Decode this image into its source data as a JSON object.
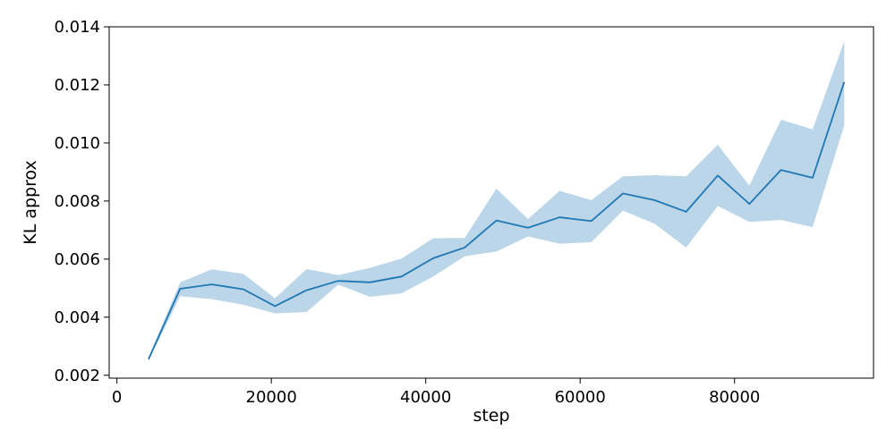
{
  "chart_data": {
    "type": "line",
    "title": "",
    "xlabel": "step",
    "ylabel": "KL approx",
    "xlim": [
      -1000,
      98000
    ],
    "ylim": [
      0.0019,
      0.014
    ],
    "xticks": [
      0,
      20000,
      40000,
      60000,
      80000
    ],
    "xtick_labels": [
      "0",
      "20000",
      "40000",
      "60000",
      "80000"
    ],
    "yticks": [
      0.002,
      0.004,
      0.006,
      0.008,
      0.01,
      0.012,
      0.014
    ],
    "ytick_labels": [
      "0.002",
      "0.004",
      "0.006",
      "0.008",
      "0.010",
      "0.012",
      "0.014"
    ],
    "grid": false,
    "series": [
      {
        "color": "#1f77b4",
        "band_color": "#1f77b4",
        "band_opacity": 0.3,
        "x": [
          4096,
          8192,
          12288,
          16384,
          20480,
          24576,
          28672,
          32768,
          36864,
          40960,
          45056,
          49152,
          53248,
          57344,
          61440,
          65536,
          69632,
          73728,
          77824,
          81920,
          86016,
          90112,
          94208
        ],
        "y": [
          0.00255,
          0.00498,
          0.00513,
          0.00496,
          0.00438,
          0.00493,
          0.00525,
          0.0052,
          0.0054,
          0.00603,
          0.0064,
          0.00733,
          0.00708,
          0.00744,
          0.00731,
          0.00826,
          0.00803,
          0.00763,
          0.00888,
          0.0079,
          0.00907,
          0.0088,
          0.0121
        ],
        "lower": [
          0.0025,
          0.00472,
          0.00462,
          0.00443,
          0.00413,
          0.00418,
          0.00512,
          0.0047,
          0.00482,
          0.0054,
          0.0061,
          0.00626,
          0.00678,
          0.00653,
          0.00658,
          0.00767,
          0.00722,
          0.0064,
          0.00783,
          0.00728,
          0.00735,
          0.0071,
          0.0106
        ],
        "upper": [
          0.00262,
          0.0052,
          0.00565,
          0.00549,
          0.00465,
          0.00566,
          0.00545,
          0.0057,
          0.00602,
          0.00672,
          0.00673,
          0.00843,
          0.00738,
          0.00835,
          0.00803,
          0.00885,
          0.00889,
          0.00885,
          0.00994,
          0.00853,
          0.0108,
          0.01047,
          0.0135
        ]
      }
    ]
  }
}
